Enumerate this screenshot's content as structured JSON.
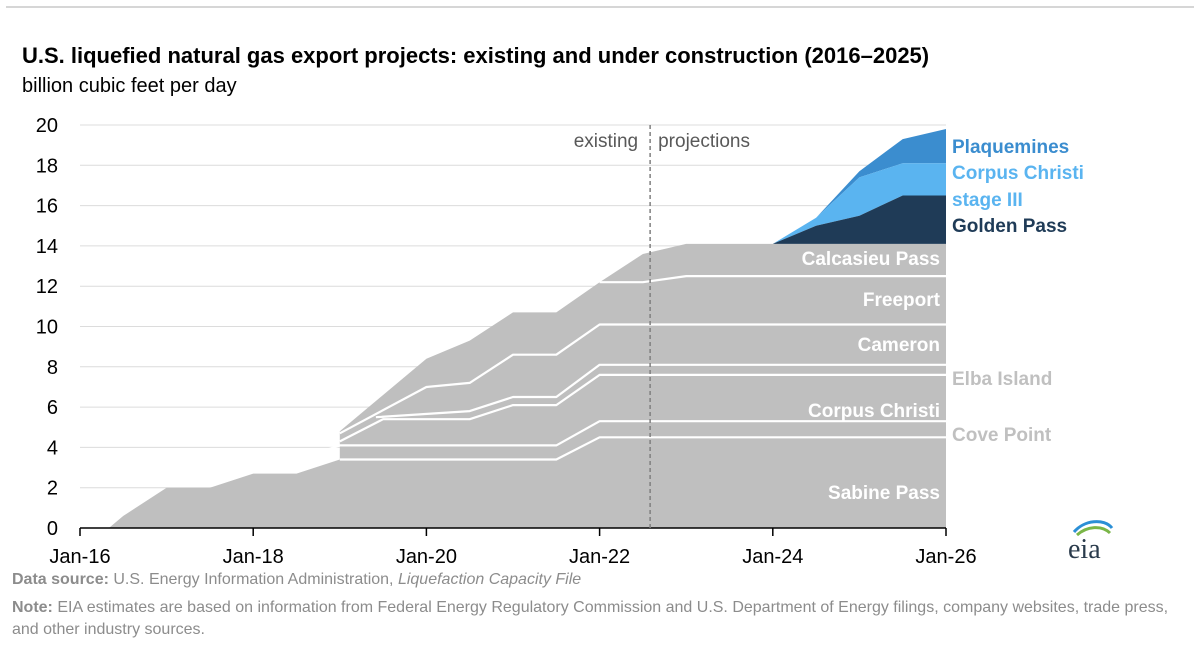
{
  "title": "U.S. liquefied natural gas export projects: existing and under construction (2016–2025)",
  "subtitle": "billion cubic feet per day",
  "chart_data": {
    "type": "area",
    "stacked": true,
    "title": "U.S. liquefied natural gas export projects: existing and under construction (2016–2025)",
    "ylabel": "billion cubic feet per day",
    "xlabel": "",
    "x_ticks": [
      "Jan-16",
      "Jan-18",
      "Jan-20",
      "Jan-22",
      "Jan-24",
      "Jan-26"
    ],
    "y_ticks": [
      "0",
      "2",
      "4",
      "6",
      "8",
      "10",
      "12",
      "14",
      "16",
      "18",
      "20"
    ],
    "ylim": [
      0,
      20
    ],
    "xlim": [
      "2016-01",
      "2026-01"
    ],
    "grid": true,
    "divider": {
      "x": "2022-08",
      "left_label": "existing",
      "right_label": "projections"
    },
    "cumulative_levels": [
      {
        "name": "Sabine Pass",
        "color": "#bfbfbf",
        "points": [
          [
            "2016-01",
            0
          ],
          [
            "2016-05",
            0
          ],
          [
            "2016-07",
            0.6
          ],
          [
            "2017-01",
            2.0
          ],
          [
            "2017-07",
            2.0
          ],
          [
            "2018-01",
            2.7
          ],
          [
            "2018-07",
            2.7
          ],
          [
            "2019-01",
            3.4
          ],
          [
            "2021-07",
            3.4
          ],
          [
            "2022-01",
            4.5
          ],
          [
            "2026-01",
            4.5
          ]
        ]
      },
      {
        "name": "Cove Point",
        "color": "#bfbfbf",
        "points": [
          [
            "2018-03",
            2.9
          ],
          [
            "2019-01",
            4.1
          ],
          [
            "2021-07",
            4.1
          ],
          [
            "2022-01",
            5.3
          ],
          [
            "2026-01",
            5.3
          ]
        ]
      },
      {
        "name": "Corpus Christi",
        "color": "#bfbfbf",
        "points": [
          [
            "2019-01",
            4.3
          ],
          [
            "2019-07",
            5.4
          ],
          [
            "2020-07",
            5.4
          ],
          [
            "2021-01",
            6.1
          ],
          [
            "2021-07",
            6.1
          ],
          [
            "2022-01",
            7.6
          ],
          [
            "2026-01",
            7.6
          ]
        ]
      },
      {
        "name": "Elba Island",
        "color": "#bfbfbf",
        "points": [
          [
            "2019-06",
            5.5
          ],
          [
            "2020-07",
            5.8
          ],
          [
            "2021-01",
            6.5
          ],
          [
            "2021-07",
            6.5
          ],
          [
            "2022-01",
            8.1
          ],
          [
            "2026-01",
            8.1
          ]
        ]
      },
      {
        "name": "Cameron",
        "color": "#bfbfbf",
        "points": [
          [
            "2019-01",
            4.7
          ],
          [
            "2020-01",
            7.0
          ],
          [
            "2020-07",
            7.2
          ],
          [
            "2021-01",
            8.6
          ],
          [
            "2021-07",
            8.6
          ],
          [
            "2022-01",
            10.1
          ],
          [
            "2026-01",
            10.1
          ]
        ]
      },
      {
        "name": "Freeport",
        "color": "#bfbfbf",
        "points": [
          [
            "2019-01",
            4.8
          ],
          [
            "2020-01",
            8.4
          ],
          [
            "2020-07",
            9.3
          ],
          [
            "2021-01",
            10.7
          ],
          [
            "2021-07",
            10.7
          ],
          [
            "2022-01",
            12.2
          ],
          [
            "2022-07",
            12.2
          ],
          [
            "2023-01",
            12.5
          ],
          [
            "2026-01",
            12.5
          ]
        ]
      },
      {
        "name": "Calcasieu Pass",
        "color": "#bfbfbf",
        "points": [
          [
            "2022-01",
            12.2
          ],
          [
            "2022-07",
            13.6
          ],
          [
            "2023-01",
            14.1
          ],
          [
            "2026-01",
            14.1
          ]
        ]
      },
      {
        "name": "Golden Pass",
        "color": "#1f3b57",
        "points": [
          [
            "2024-01",
            14.1
          ],
          [
            "2024-07",
            15.0
          ],
          [
            "2025-01",
            15.5
          ],
          [
            "2025-07",
            16.5
          ],
          [
            "2026-01",
            16.5
          ]
        ]
      },
      {
        "name": "Corpus Christi stage III",
        "color": "#5ab4f0",
        "points": [
          [
            "2024-01",
            14.1
          ],
          [
            "2024-07",
            15.4
          ],
          [
            "2025-01",
            17.4
          ],
          [
            "2025-07",
            18.1
          ],
          [
            "2026-01",
            18.1
          ]
        ]
      },
      {
        "name": "Plaquemines",
        "color": "#3b8dcf",
        "points": [
          [
            "2024-01",
            14.1
          ],
          [
            "2024-07",
            15.4
          ],
          [
            "2025-01",
            17.7
          ],
          [
            "2025-07",
            19.3
          ],
          [
            "2026-01",
            19.8
          ]
        ]
      }
    ],
    "labels": [
      {
        "text": "Plaquemines",
        "color": "#3b8dcf",
        "inside": false
      },
      {
        "text": "Corpus Christi",
        "color": "#5ab4f0",
        "inside": false
      },
      {
        "text": "stage III",
        "color": "#5ab4f0",
        "inside": false
      },
      {
        "text": "Golden Pass",
        "color": "#1f3b57",
        "inside": false
      },
      {
        "text": "Calcasieu Pass",
        "color": "#ffffff",
        "inside": true
      },
      {
        "text": "Freeport",
        "color": "#ffffff",
        "inside": true
      },
      {
        "text": "Cameron",
        "color": "#ffffff",
        "inside": true
      },
      {
        "text": "Elba Island",
        "color": "#c0c0c0",
        "inside": false
      },
      {
        "text": "Corpus Christi",
        "color": "#ffffff",
        "inside": true
      },
      {
        "text": "Cove Point",
        "color": "#c0c0c0",
        "inside": false
      },
      {
        "text": "Sabine Pass",
        "color": "#ffffff",
        "inside": true
      }
    ]
  },
  "footer": {
    "source_label": "Data source:",
    "source_text": "U.S. Energy Information Administration,",
    "source_italic": "Liquefaction Capacity File",
    "note_label": "Note:",
    "note_text": "EIA estimates are based on information from Federal Energy Regulatory Commission and U.S. Department of Energy filings, company websites, trade press, and other industry sources."
  },
  "logo_text": "eia"
}
